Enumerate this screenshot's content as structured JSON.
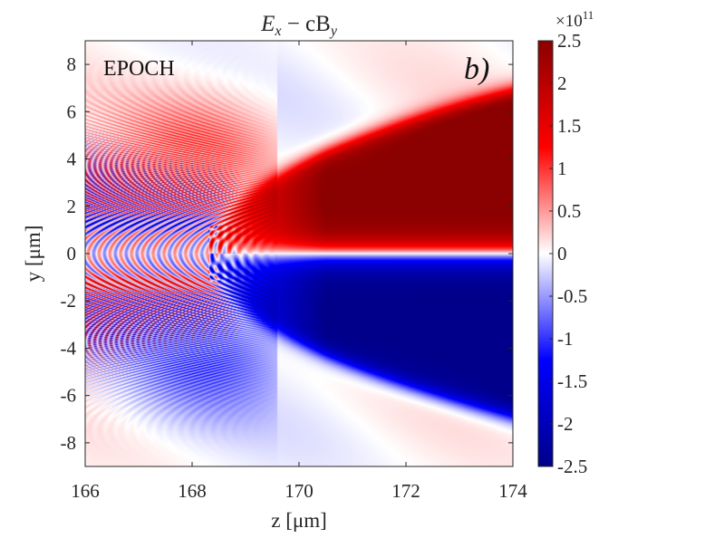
{
  "chart_data": {
    "type": "heatmap",
    "title": "E_x − cB_y",
    "title_parts": {
      "base": "E",
      "sub1": "x",
      "mid": " − cB",
      "sub2": "y"
    },
    "xlabel": "z [μm]",
    "ylabel": "y [μm]",
    "xlim": [
      166,
      174
    ],
    "ylim": [
      -9,
      9
    ],
    "xticks": [
      "166",
      "168",
      "170",
      "172",
      "174"
    ],
    "yticks": [
      "-8",
      "-6",
      "-4",
      "-2",
      "0",
      "2",
      "4",
      "6",
      "8"
    ],
    "colorbar": {
      "range": [
        -2.5,
        2.5
      ],
      "exponent": "×10",
      "exponent_power": "11",
      "ticks": [
        "2.5",
        "2",
        "1.5",
        "1",
        "0.5",
        "0",
        "-0.5",
        "-1",
        "-1.5",
        "-2",
        "-2.5"
      ],
      "colormap": [
        "#00008b",
        "#0000ff",
        "#ffffff",
        "#ff0000",
        "#8b0000"
      ]
    },
    "annotations": {
      "code": "EPOCH",
      "panel": "b)"
    },
    "features": {
      "field_structure": "antisymmetric in y; positive above y=0, negative below",
      "wake_start_z": 168.3,
      "peak_value": 2.5,
      "peak_y": 4.5
    }
  }
}
